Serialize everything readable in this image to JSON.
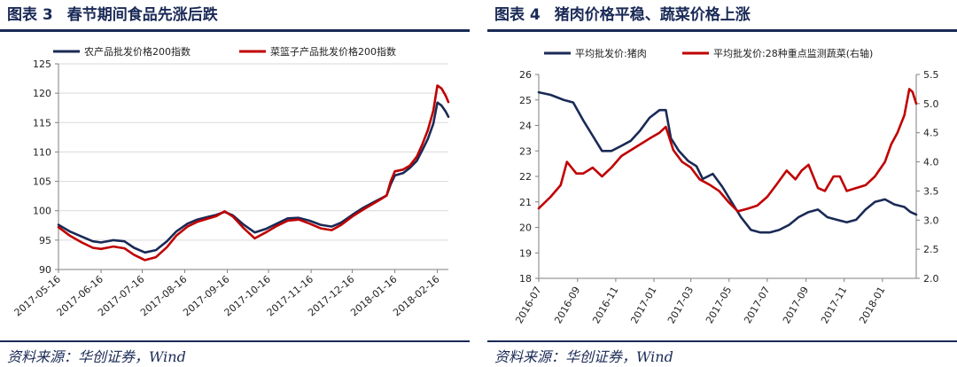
{
  "figures": [
    {
      "number": "图表 3",
      "title": "春节期间食品先涨后跌",
      "source": "资料来源：华创证券，Wind"
    },
    {
      "number": "图表 4",
      "title": "猪肉价格平稳、蔬菜价格上涨",
      "source": "资料来源：华创证券，Wind"
    }
  ],
  "chart_data": [
    {
      "type": "line",
      "title": "",
      "xlabel": "",
      "ylabel": "",
      "ylim": [
        90,
        125
      ],
      "yticks": [
        90,
        95,
        100,
        105,
        110,
        115,
        120,
        125
      ],
      "x_ticks": [
        "2017-05-16",
        "2017-06-16",
        "2017-07-16",
        "2017-08-16",
        "2017-09-16",
        "2017-10-16",
        "2017-11-16",
        "2017-12-16",
        "2018-01-16",
        "2018-02-16"
      ],
      "x_range": [
        "2017-05-16",
        "2018-02-24"
      ],
      "grid": "horizontal",
      "legend_position": "top",
      "series": [
        {
          "name": "农产品批发价格200指数",
          "color": "#1a2a56",
          "points": [
            [
              "2017-05-16",
              97.6
            ],
            [
              "2017-05-24",
              96.5
            ],
            [
              "2017-06-02",
              95.6
            ],
            [
              "2017-06-10",
              94.8
            ],
            [
              "2017-06-16",
              94.6
            ],
            [
              "2017-06-25",
              95.0
            ],
            [
              "2017-07-03",
              94.8
            ],
            [
              "2017-07-10",
              93.7
            ],
            [
              "2017-07-18",
              92.9
            ],
            [
              "2017-07-26",
              93.3
            ],
            [
              "2017-08-03",
              94.8
            ],
            [
              "2017-08-10",
              96.5
            ],
            [
              "2017-08-18",
              97.8
            ],
            [
              "2017-08-25",
              98.5
            ],
            [
              "2017-09-01",
              98.9
            ],
            [
              "2017-09-08",
              99.3
            ],
            [
              "2017-09-14",
              99.8
            ],
            [
              "2017-09-20",
              99.2
            ],
            [
              "2017-09-28",
              97.6
            ],
            [
              "2017-10-06",
              96.3
            ],
            [
              "2017-10-14",
              96.9
            ],
            [
              "2017-10-22",
              97.8
            ],
            [
              "2017-10-30",
              98.7
            ],
            [
              "2017-11-07",
              98.8
            ],
            [
              "2017-11-15",
              98.3
            ],
            [
              "2017-11-23",
              97.6
            ],
            [
              "2017-12-01",
              97.3
            ],
            [
              "2017-12-08",
              98.0
            ],
            [
              "2017-12-16",
              99.3
            ],
            [
              "2017-12-24",
              100.5
            ],
            [
              "2018-01-01",
              101.5
            ],
            [
              "2018-01-06",
              102.1
            ],
            [
              "2018-01-10",
              102.6
            ],
            [
              "2018-01-13",
              104.5
            ],
            [
              "2018-01-16",
              106.0
            ],
            [
              "2018-01-22",
              106.4
            ],
            [
              "2018-01-27",
              107.3
            ],
            [
              "2018-02-01",
              108.5
            ],
            [
              "2018-02-05",
              110.3
            ],
            [
              "2018-02-09",
              112.2
            ],
            [
              "2018-02-13",
              114.8
            ],
            [
              "2018-02-16",
              118.4
            ],
            [
              "2018-02-19",
              117.9
            ],
            [
              "2018-02-22",
              116.9
            ],
            [
              "2018-02-24",
              116.0
            ]
          ]
        },
        {
          "name": "菜篮子产品批发价格200指数",
          "color": "#c00000",
          "points": [
            [
              "2017-05-16",
              97.2
            ],
            [
              "2017-05-24",
              95.8
            ],
            [
              "2017-06-02",
              94.6
            ],
            [
              "2017-06-10",
              93.7
            ],
            [
              "2017-06-16",
              93.5
            ],
            [
              "2017-06-25",
              93.9
            ],
            [
              "2017-07-03",
              93.6
            ],
            [
              "2017-07-10",
              92.5
            ],
            [
              "2017-07-18",
              91.6
            ],
            [
              "2017-07-26",
              92.1
            ],
            [
              "2017-08-03",
              93.8
            ],
            [
              "2017-08-10",
              95.8
            ],
            [
              "2017-08-18",
              97.3
            ],
            [
              "2017-08-25",
              98.1
            ],
            [
              "2017-09-01",
              98.6
            ],
            [
              "2017-09-08",
              99.1
            ],
            [
              "2017-09-14",
              99.9
            ],
            [
              "2017-09-20",
              99.0
            ],
            [
              "2017-09-28",
              97.0
            ],
            [
              "2017-10-06",
              95.3
            ],
            [
              "2017-10-14",
              96.3
            ],
            [
              "2017-10-22",
              97.4
            ],
            [
              "2017-10-30",
              98.3
            ],
            [
              "2017-11-07",
              98.5
            ],
            [
              "2017-11-15",
              97.8
            ],
            [
              "2017-11-23",
              97.0
            ],
            [
              "2017-12-01",
              96.7
            ],
            [
              "2017-12-08",
              97.6
            ],
            [
              "2017-12-16",
              99.0
            ],
            [
              "2017-12-24",
              100.2
            ],
            [
              "2018-01-01",
              101.3
            ],
            [
              "2018-01-06",
              102.0
            ],
            [
              "2018-01-10",
              102.6
            ],
            [
              "2018-01-13",
              105.0
            ],
            [
              "2018-01-16",
              106.7
            ],
            [
              "2018-01-22",
              107.0
            ],
            [
              "2018-01-27",
              107.7
            ],
            [
              "2018-02-01",
              109.2
            ],
            [
              "2018-02-05",
              111.3
            ],
            [
              "2018-02-09",
              113.7
            ],
            [
              "2018-02-13",
              117.0
            ],
            [
              "2018-02-16",
              121.3
            ],
            [
              "2018-02-19",
              120.8
            ],
            [
              "2018-02-22",
              119.6
            ],
            [
              "2018-02-24",
              118.5
            ]
          ]
        }
      ]
    },
    {
      "type": "line",
      "title": "",
      "xlabel": "",
      "ylabel": "",
      "ylim": [
        18,
        26
      ],
      "yticks": [
        18,
        19,
        20,
        21,
        22,
        23,
        24,
        25,
        26
      ],
      "y2lim": [
        2.0,
        5.5
      ],
      "y2ticks": [
        2.0,
        2.5,
        3.0,
        3.5,
        4.0,
        4.5,
        5.0,
        5.5
      ],
      "y2_tick_format": "fixed1",
      "x_ticks": [
        "2016-07",
        "2016-09",
        "2016-11",
        "2017-01",
        "2017-03",
        "2017-05",
        "2017-07",
        "2017-09",
        "2017-11",
        "2018-01"
      ],
      "x_range": [
        "2016-07-01",
        "2018-02-24"
      ],
      "grid": "none",
      "legend_position": "top",
      "series": [
        {
          "name": "平均批发价:猪肉",
          "color": "#1a2a56",
          "axis": "left",
          "points": [
            [
              "2016-07-01",
              25.3
            ],
            [
              "2016-07-20",
              25.2
            ],
            [
              "2016-08-10",
              25.0
            ],
            [
              "2016-08-25",
              24.9
            ],
            [
              "2016-09-10",
              24.2
            ],
            [
              "2016-09-25",
              23.6
            ],
            [
              "2016-10-10",
              23.0
            ],
            [
              "2016-10-25",
              23.0
            ],
            [
              "2016-11-10",
              23.2
            ],
            [
              "2016-11-25",
              23.4
            ],
            [
              "2016-12-10",
              23.8
            ],
            [
              "2016-12-25",
              24.3
            ],
            [
              "2017-01-10",
              24.6
            ],
            [
              "2017-01-20",
              24.6
            ],
            [
              "2017-01-28",
              23.5
            ],
            [
              "2017-02-10",
              23.0
            ],
            [
              "2017-02-25",
              22.6
            ],
            [
              "2017-03-10",
              22.4
            ],
            [
              "2017-03-20",
              21.9
            ],
            [
              "2017-04-05",
              22.1
            ],
            [
              "2017-04-20",
              21.6
            ],
            [
              "2017-05-05",
              21.0
            ],
            [
              "2017-05-20",
              20.4
            ],
            [
              "2017-06-05",
              19.9
            ],
            [
              "2017-06-20",
              19.8
            ],
            [
              "2017-07-05",
              19.8
            ],
            [
              "2017-07-20",
              19.9
            ],
            [
              "2017-08-05",
              20.1
            ],
            [
              "2017-08-20",
              20.4
            ],
            [
              "2017-09-05",
              20.6
            ],
            [
              "2017-09-20",
              20.7
            ],
            [
              "2017-10-05",
              20.4
            ],
            [
              "2017-10-20",
              20.3
            ],
            [
              "2017-11-05",
              20.2
            ],
            [
              "2017-11-20",
              20.3
            ],
            [
              "2017-12-05",
              20.7
            ],
            [
              "2017-12-20",
              21.0
            ],
            [
              "2018-01-05",
              21.1
            ],
            [
              "2018-01-20",
              20.9
            ],
            [
              "2018-02-05",
              20.8
            ],
            [
              "2018-02-15",
              20.6
            ],
            [
              "2018-02-24",
              20.5
            ]
          ]
        },
        {
          "name": "平均批发价:28种重点监测蔬菜(右轴)",
          "color": "#c00000",
          "axis": "right",
          "points": [
            [
              "2016-07-01",
              3.2
            ],
            [
              "2016-07-20",
              3.4
            ],
            [
              "2016-08-05",
              3.6
            ],
            [
              "2016-08-15",
              4.0
            ],
            [
              "2016-08-30",
              3.8
            ],
            [
              "2016-09-10",
              3.8
            ],
            [
              "2016-09-25",
              3.9
            ],
            [
              "2016-10-10",
              3.75
            ],
            [
              "2016-10-25",
              3.9
            ],
            [
              "2016-11-10",
              4.1
            ],
            [
              "2016-11-25",
              4.2
            ],
            [
              "2016-12-10",
              4.3
            ],
            [
              "2016-12-25",
              4.4
            ],
            [
              "2017-01-10",
              4.5
            ],
            [
              "2017-01-20",
              4.6
            ],
            [
              "2017-02-01",
              4.2
            ],
            [
              "2017-02-15",
              4.0
            ],
            [
              "2017-03-01",
              3.9
            ],
            [
              "2017-03-15",
              3.7
            ],
            [
              "2017-04-01",
              3.6
            ],
            [
              "2017-04-15",
              3.5
            ],
            [
              "2017-05-01",
              3.3
            ],
            [
              "2017-05-15",
              3.15
            ],
            [
              "2017-06-01",
              3.2
            ],
            [
              "2017-06-15",
              3.25
            ],
            [
              "2017-07-01",
              3.4
            ],
            [
              "2017-07-15",
              3.6
            ],
            [
              "2017-08-01",
              3.85
            ],
            [
              "2017-08-15",
              3.7
            ],
            [
              "2017-08-25",
              3.85
            ],
            [
              "2017-09-05",
              3.95
            ],
            [
              "2017-09-20",
              3.55
            ],
            [
              "2017-10-01",
              3.5
            ],
            [
              "2017-10-15",
              3.75
            ],
            [
              "2017-10-25",
              3.75
            ],
            [
              "2017-11-05",
              3.5
            ],
            [
              "2017-11-20",
              3.55
            ],
            [
              "2017-12-05",
              3.6
            ],
            [
              "2017-12-20",
              3.75
            ],
            [
              "2018-01-05",
              4.0
            ],
            [
              "2018-01-15",
              4.3
            ],
            [
              "2018-01-25",
              4.5
            ],
            [
              "2018-02-05",
              4.8
            ],
            [
              "2018-02-13",
              5.25
            ],
            [
              "2018-02-18",
              5.2
            ],
            [
              "2018-02-24",
              5.0
            ]
          ]
        }
      ]
    }
  ]
}
